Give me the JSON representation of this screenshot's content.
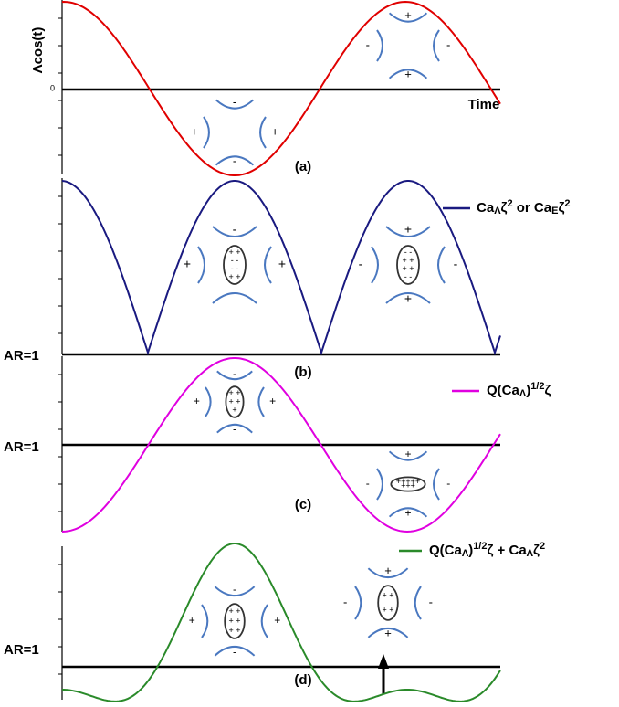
{
  "axis_label": "Λcos(t)",
  "zero": "0",
  "time": "Time",
  "panels": [
    "(a)",
    "(b)",
    "(c)",
    "(d)"
  ],
  "ar_labels": [
    "AR=1",
    "AR=1",
    "AR=1"
  ],
  "legends": [
    [
      {
        "t": "Ca"
      },
      {
        "t": "Λ",
        "s": "sub"
      },
      {
        "t": "ζ"
      },
      {
        "t": "2",
        "s": "sup"
      },
      {
        "t": " or Ca"
      },
      {
        "t": "E",
        "s": "sub"
      },
      {
        "t": "ζ"
      },
      {
        "t": "2",
        "s": "sup"
      }
    ],
    [
      {
        "t": "Q(Ca"
      },
      {
        "t": "Λ",
        "s": "sub"
      },
      {
        "t": ")"
      },
      {
        "t": "1/2",
        "s": "sup"
      },
      {
        "t": "ζ"
      }
    ],
    [
      {
        "t": "Q(Ca"
      },
      {
        "t": "Λ",
        "s": "sub"
      },
      {
        "t": ")"
      },
      {
        "t": "1/2",
        "s": "sup"
      },
      {
        "t": "ζ + Ca"
      },
      {
        "t": "Λ",
        "s": "sub"
      },
      {
        "t": "ζ"
      },
      {
        "t": "2",
        "s": "sup"
      }
    ]
  ],
  "droplets": [
    {
      "top": "-",
      "bottom": "-",
      "left": "+",
      "right": "+"
    },
    {
      "top": "+",
      "bottom": "+",
      "left": "-",
      "right": "-"
    },
    {
      "top": "-",
      "left": "+",
      "right": "+",
      "inner": [
        "+ +",
        "- -",
        "- -",
        "+ +"
      ]
    },
    {
      "top": "+",
      "bottom": "+",
      "left": "-",
      "right": "-",
      "inner": [
        "- -",
        "+ +",
        "+ +",
        "- -"
      ]
    },
    {
      "top": "-",
      "bottom": "-",
      "left": "+",
      "right": "+",
      "inner": [
        "+ +",
        "+ +",
        "+"
      ]
    },
    {
      "top": "+",
      "bottom": "+",
      "left": "-",
      "right": "-",
      "inner": [
        "+++++",
        "+++"
      ]
    },
    {
      "top": "-",
      "bottom": "-",
      "left": "+",
      "right": "+",
      "inner": [
        "+ +",
        "+ +",
        "+ +"
      ]
    },
    {
      "top": "+",
      "bottom": "+",
      "left": "-",
      "right": "-",
      "inner": [
        "+ +",
        "+ +"
      ]
    }
  ]
}
